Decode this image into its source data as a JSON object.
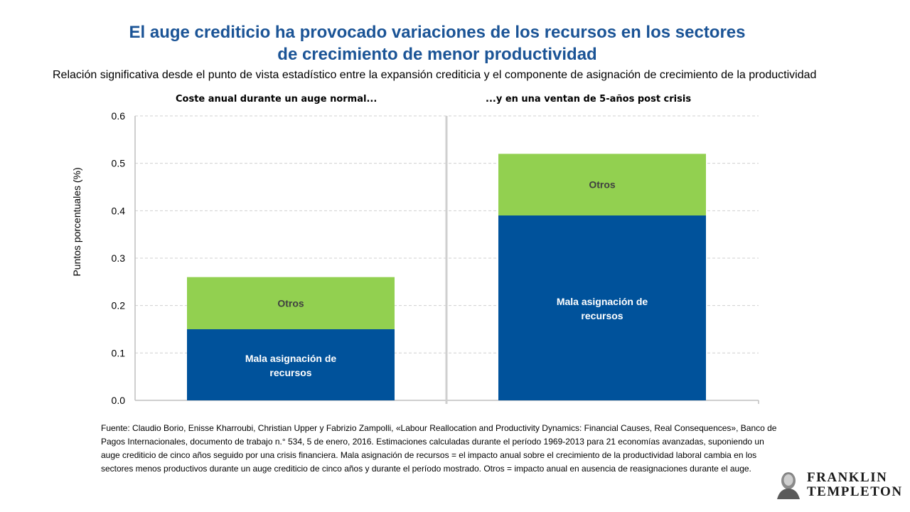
{
  "header": {
    "title_line1": "El auge crediticio ha provocado variaciones de los recursos en los sectores",
    "title_line2": "de crecimiento de menor productividad",
    "subtitle": "Relación significativa desde el punto de vista estadístico entre la expansión crediticia y el componente de asignación de crecimiento de la productividad"
  },
  "colors": {
    "mala_asignacion": "#00529b",
    "otros": "#92d050",
    "title": "#1b5496"
  },
  "chart_data": {
    "type": "bar",
    "stacked": true,
    "categories": [
      "Coste anual durante un auge normal...",
      "...y en una ventan de 5-años post crisis"
    ],
    "series": [
      {
        "name": "Mala asignación de recursos",
        "values": [
          0.15,
          0.39
        ]
      },
      {
        "name": "Otros",
        "values": [
          0.11,
          0.13
        ]
      }
    ],
    "ylabel": "Puntos porcentuales (%)",
    "ylim": [
      0,
      0.6
    ],
    "yticks": [
      "0.0",
      "0.1",
      "0.2",
      "0.3",
      "0.4",
      "0.5",
      "0.6"
    ],
    "grid": true,
    "legend": "none",
    "bar_labels": [
      {
        "otros": "Otros",
        "mala_line1": "Mala asignación de",
        "mala_line2": "recursos"
      },
      {
        "otros": "Otros",
        "mala_line1": "Mala asignación de",
        "mala_line2": "recursos"
      }
    ]
  },
  "source": "Fuente: Claudio Borio, Enisse Kharroubi, Christian Upper y Fabrizio Zampolli, «Labour Reallocation and Productivity Dynamics: Financial Causes, Real Consequences», Banco de Pagos Internacionales, documento de trabajo n.° 534, 5 de enero, 2016. Estimaciones calculadas durante el período 1969-2013 para 21 economías avanzadas, suponiendo un auge crediticio de cinco años seguido por una crisis financiera. Mala asignación de recursos = el impacto anual sobre el crecimiento de la productividad laboral cambia en los sectores menos productivos durante un auge crediticio de cinco años y durante el período mostrado. Otros = impacto anual en ausencia de reasignaciones durante el auge.",
  "logo": {
    "line1": "FRANKLIN",
    "line2": "TEMPLETON"
  }
}
